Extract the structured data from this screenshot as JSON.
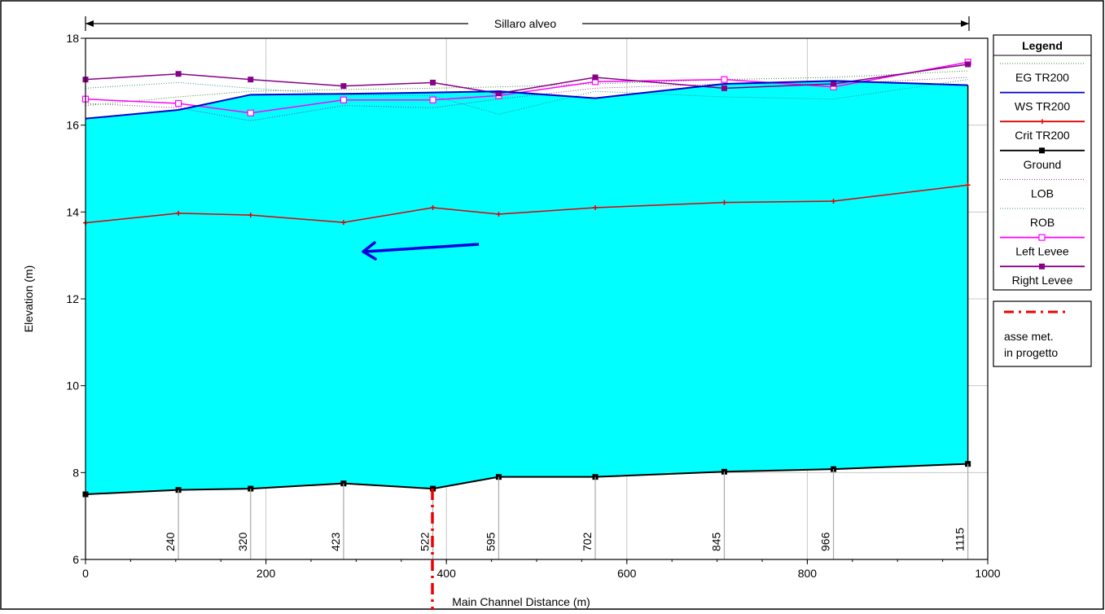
{
  "chart_data": {
    "type": "line",
    "title": "Sillaro alveo",
    "xlabel": "Main Channel Distance (m)",
    "ylabel": "Elevation (m)",
    "xlim": [
      0,
      1000
    ],
    "ylim": [
      6,
      18
    ],
    "x_ticks": [
      "0",
      "200",
      "400",
      "600",
      "800",
      "1000"
    ],
    "y_ticks": [
      "6",
      "8",
      "10",
      "12",
      "14",
      "16",
      "18"
    ],
    "grid": true,
    "legend_position": "right",
    "legend_title": "Legend",
    "stations": [
      {
        "x": 0,
        "label": ""
      },
      {
        "x": 103,
        "label": "240"
      },
      {
        "x": 183,
        "label": "320"
      },
      {
        "x": 286,
        "label": "423"
      },
      {
        "x": 385,
        "label": "522"
      },
      {
        "x": 458,
        "label": "595"
      },
      {
        "x": 565,
        "label": "702"
      },
      {
        "x": 708,
        "label": "845"
      },
      {
        "x": 829,
        "label": "966"
      },
      {
        "x": 978,
        "label": "1115"
      }
    ],
    "series": [
      {
        "name": "EG  TR200",
        "color": "#2e8b2e",
        "style": "dotted",
        "marker": "none",
        "x": [
          0,
          103,
          183,
          286,
          385,
          458,
          565,
          708,
          829,
          978
        ],
        "y": [
          16.45,
          16.65,
          16.78,
          16.82,
          16.85,
          16.88,
          16.95,
          17.05,
          17.1,
          17.25
        ]
      },
      {
        "name": "WS  TR200",
        "color": "#0000cc",
        "style": "solid",
        "marker": "none",
        "x": [
          0,
          103,
          183,
          286,
          385,
          458,
          565,
          708,
          829,
          978
        ],
        "y": [
          16.15,
          16.35,
          16.7,
          16.72,
          16.75,
          16.78,
          16.62,
          16.95,
          17.02,
          16.92
        ]
      },
      {
        "name": "Crit  TR200",
        "color": "#e00000",
        "style": "solid",
        "marker": "plus",
        "x": [
          0,
          103,
          183,
          286,
          385,
          458,
          565,
          708,
          829,
          978
        ],
        "y": [
          13.75,
          13.97,
          13.93,
          13.76,
          14.1,
          13.95,
          14.1,
          14.22,
          14.25,
          14.62
        ]
      },
      {
        "name": "Ground",
        "color": "#000000",
        "style": "solid",
        "marker": "square",
        "x": [
          0,
          103,
          183,
          286,
          385,
          458,
          565,
          708,
          829,
          978
        ],
        "y": [
          7.5,
          7.6,
          7.63,
          7.75,
          7.63,
          7.9,
          7.9,
          8.02,
          8.08,
          8.2
        ]
      },
      {
        "name": "LOB",
        "color": "#8b3a8b",
        "style": "dotted",
        "marker": "none",
        "x": [
          0,
          103,
          183,
          286,
          385,
          458,
          565,
          708,
          829,
          978
        ],
        "y": [
          16.5,
          16.4,
          16.1,
          16.45,
          16.4,
          16.6,
          16.85,
          16.95,
          16.95,
          17.1
        ]
      },
      {
        "name": "ROB",
        "color": "#2e8b8b",
        "style": "dotted",
        "marker": "none",
        "x": [
          0,
          103,
          183,
          286,
          385,
          458,
          565,
          708,
          829,
          978
        ],
        "y": [
          16.85,
          16.98,
          16.85,
          16.7,
          16.68,
          16.25,
          16.78,
          16.65,
          16.6,
          17.05
        ]
      },
      {
        "name": "Left Levee",
        "color": "#ff00ff",
        "style": "solid",
        "marker": "hollow-square",
        "x": [
          0,
          103,
          183,
          286,
          385,
          458,
          565,
          708,
          829,
          978
        ],
        "y": [
          16.6,
          16.5,
          16.28,
          16.58,
          16.58,
          16.68,
          17.0,
          17.05,
          16.88,
          17.45
        ]
      },
      {
        "name": "Right Levee",
        "color": "#880088",
        "style": "solid",
        "marker": "square",
        "x": [
          0,
          103,
          183,
          286,
          385,
          458,
          565,
          708,
          829,
          978
        ],
        "y": [
          17.05,
          17.18,
          17.05,
          16.9,
          16.98,
          16.73,
          17.1,
          16.85,
          16.95,
          17.4
        ]
      }
    ],
    "annotations": {
      "axis_marker_label_1": "asse met.",
      "axis_marker_label_2": "in progetto",
      "axis_marker_x": 385,
      "axis_marker_color": "#ee0000",
      "water_fill_color": "#00ffff",
      "flow_arrow_color": "#0000dd"
    }
  }
}
